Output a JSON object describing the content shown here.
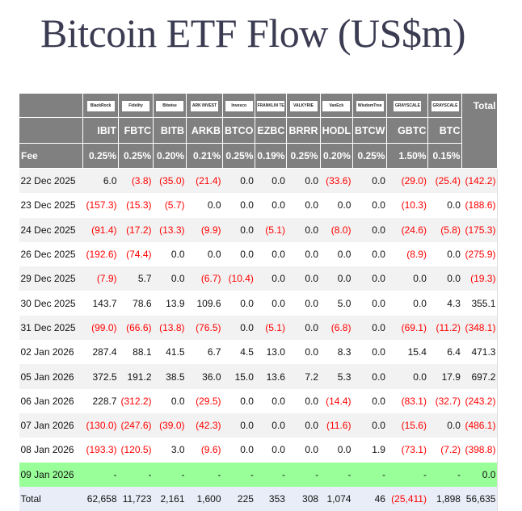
{
  "title": "Bitcoin ETF Flow (US$m)",
  "colors": {
    "header_bg": "#808080",
    "negative": "#ff0000",
    "today_row": "#99ff99",
    "total_row": "#e9edf7"
  },
  "header": {
    "total_label": "Total",
    "fee_label": "Fee",
    "logos": [
      "BlackRock",
      "Fidelity",
      "Bitwise",
      "ARK INVEST",
      "Invesco",
      "FRANKLIN TEMPLETON",
      "VALKYRIE",
      "VanEck",
      "WisdomTree",
      "GRAYSCALE",
      "GRAYSCALE"
    ],
    "tickers": [
      "IBIT",
      "FBTC",
      "BITB",
      "ARKB",
      "BTCO",
      "EZBC",
      "BRRR",
      "HODL",
      "BTCW",
      "GBTC",
      "BTC"
    ],
    "fees": [
      "0.25%",
      "0.25%",
      "0.20%",
      "0.21%",
      "0.25%",
      "0.19%",
      "0.25%",
      "0.20%",
      "0.25%",
      "1.50%",
      "0.15%"
    ]
  },
  "rows": [
    {
      "date": "22 Dec 2025",
      "values": [
        "6.0",
        "(3.8)",
        "(35.0)",
        "(21.4)",
        "0.0",
        "0.0",
        "0.0",
        "(33.6)",
        "0.0",
        "(29.0)",
        "(25.4)",
        "(142.2)"
      ]
    },
    {
      "date": "23 Dec 2025",
      "values": [
        "(157.3)",
        "(15.3)",
        "(5.7)",
        "0.0",
        "0.0",
        "0.0",
        "0.0",
        "0.0",
        "0.0",
        "(10.3)",
        "0.0",
        "(188.6)"
      ]
    },
    {
      "date": "24 Dec 2025",
      "values": [
        "(91.4)",
        "(17.2)",
        "(13.3)",
        "(9.9)",
        "0.0",
        "(5.1)",
        "0.0",
        "(8.0)",
        "0.0",
        "(24.6)",
        "(5.8)",
        "(175.3)"
      ]
    },
    {
      "date": "26 Dec 2025",
      "values": [
        "(192.6)",
        "(74.4)",
        "0.0",
        "0.0",
        "0.0",
        "0.0",
        "0.0",
        "0.0",
        "0.0",
        "(8.9)",
        "0.0",
        "(275.9)"
      ]
    },
    {
      "date": "29 Dec 2025",
      "values": [
        "(7.9)",
        "5.7",
        "0.0",
        "(6.7)",
        "(10.4)",
        "0.0",
        "0.0",
        "0.0",
        "0.0",
        "0.0",
        "0.0",
        "(19.3)"
      ]
    },
    {
      "date": "30 Dec 2025",
      "values": [
        "143.7",
        "78.6",
        "13.9",
        "109.6",
        "0.0",
        "0.0",
        "0.0",
        "5.0",
        "0.0",
        "0.0",
        "4.3",
        "355.1"
      ]
    },
    {
      "date": "31 Dec 2025",
      "values": [
        "(99.0)",
        "(66.6)",
        "(13.8)",
        "(76.5)",
        "0.0",
        "(5.1)",
        "0.0",
        "(6.8)",
        "0.0",
        "(69.1)",
        "(11.2)",
        "(348.1)"
      ]
    },
    {
      "date": "02 Jan 2026",
      "values": [
        "287.4",
        "88.1",
        "41.5",
        "6.7",
        "4.5",
        "13.0",
        "0.0",
        "8.3",
        "0.0",
        "15.4",
        "6.4",
        "471.3"
      ]
    },
    {
      "date": "05 Jan 2026",
      "values": [
        "372.5",
        "191.2",
        "38.5",
        "36.0",
        "15.0",
        "13.6",
        "7.2",
        "5.3",
        "0.0",
        "0.0",
        "17.9",
        "697.2"
      ]
    },
    {
      "date": "06 Jan 2026",
      "values": [
        "228.7",
        "(312.2)",
        "0.0",
        "(29.5)",
        "0.0",
        "0.0",
        "0.0",
        "(14.4)",
        "0.0",
        "(83.1)",
        "(32.7)",
        "(243.2)"
      ]
    },
    {
      "date": "07 Jan 2026",
      "values": [
        "(130.0)",
        "(247.6)",
        "(39.0)",
        "(42.3)",
        "0.0",
        "0.0",
        "0.0",
        "(11.6)",
        "0.0",
        "(15.6)",
        "0.0",
        "(486.1)"
      ]
    },
    {
      "date": "08 Jan 2026",
      "values": [
        "(193.3)",
        "(120.5)",
        "3.0",
        "(9.6)",
        "0.0",
        "0.0",
        "0.0",
        "0.0",
        "1.9",
        "(73.1)",
        "(7.2)",
        "(398.8)"
      ]
    },
    {
      "date": "09 Jan 2026",
      "today": true,
      "values": [
        "-",
        "-",
        "-",
        "-",
        "-",
        "-",
        "-",
        "-",
        "-",
        "-",
        "-",
        "0.0"
      ]
    },
    {
      "date": "Total",
      "total": true,
      "values": [
        "62,658",
        "11,723",
        "2,161",
        "1,600",
        "225",
        "353",
        "308",
        "1,074",
        "46",
        "(25,411)",
        "1,898",
        "56,635"
      ]
    }
  ]
}
